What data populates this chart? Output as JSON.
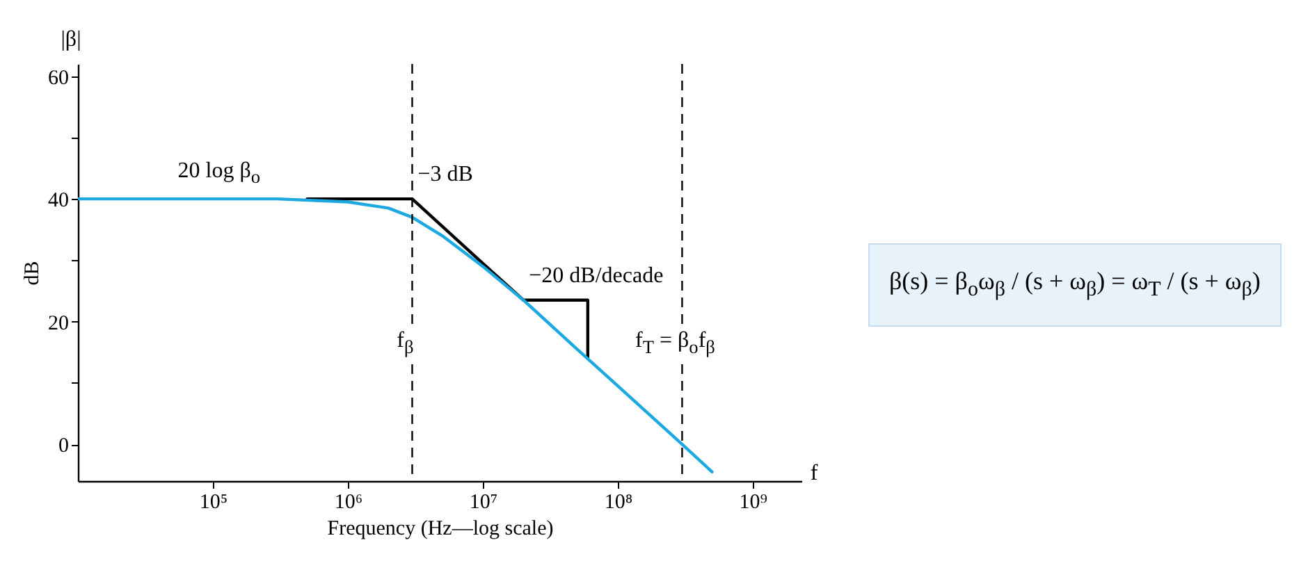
{
  "chart_data": {
    "type": "line",
    "xlabel": "Frequency (Hz—log scale)",
    "ylabel": "dB",
    "log": "x",
    "xlim": [
      10000,
      2300000000
    ],
    "ylim": [
      -6,
      62
    ],
    "xticks": [
      {
        "value": 100000,
        "label": "10⁵"
      },
      {
        "value": 1000000,
        "label": "10⁶"
      },
      {
        "value": 10000000,
        "label": "10⁷"
      },
      {
        "value": 100000000,
        "label": "10⁸"
      },
      {
        "value": 1000000000,
        "label": "10⁹"
      }
    ],
    "yticks": [
      0,
      {
        "value": 10,
        "label": null
      },
      20,
      {
        "value": 30,
        "label": null
      },
      40,
      {
        "value": 50,
        "label": null
      },
      60
    ],
    "series": [
      {
        "color": "#000000",
        "x": [
          500000,
          3000000,
          10000000,
          20000000
        ],
        "values": [
          40,
          40,
          29.5,
          23.5
        ]
      },
      {
        "color": "#000000",
        "x": [
          20000000,
          60000000,
          60000000
        ],
        "values": [
          23.5,
          23.5,
          14
        ]
      },
      {
        "color": "#1ca8e0",
        "x": [
          10000,
          100000,
          300000,
          1000000,
          2000000,
          3000000,
          5000000,
          10000000,
          20000000,
          50000000,
          100000000,
          200000000,
          300000000,
          500000000
        ],
        "values": [
          40,
          40,
          40,
          39.5,
          38.5,
          37,
          34,
          29,
          23.5,
          15.5,
          9.5,
          3.5,
          0,
          -4.5
        ]
      }
    ],
    "ref_lines": [
      {
        "axis": "x",
        "value": 3000000,
        "label": "f$_{β}$",
        "line_style": "dashed",
        "color": "#000000"
      },
      {
        "axis": "x",
        "value": 300000000,
        "label": "f$_{T}$ = β$_{o}$f$_{β}$",
        "line_style": "dashed",
        "color": "#000000"
      }
    ],
    "annotations": [
      "|β|",
      "f",
      "β(s) = β$_{o}$ω$_{β}$ / (s + ω$_{β}$) = ω$_{T}$ / (s + ω$_{β}$)",
      {
        "text": "20 log β$_{o}$",
        "x": 50000,
        "y": 40
      },
      {
        "text": "−3 dB",
        "x": 3000000,
        "y": 40
      },
      {
        "text": "−20 dB/decade",
        "x": 20000000,
        "y": 23.5
      }
    ],
    "grid": false
  }
}
